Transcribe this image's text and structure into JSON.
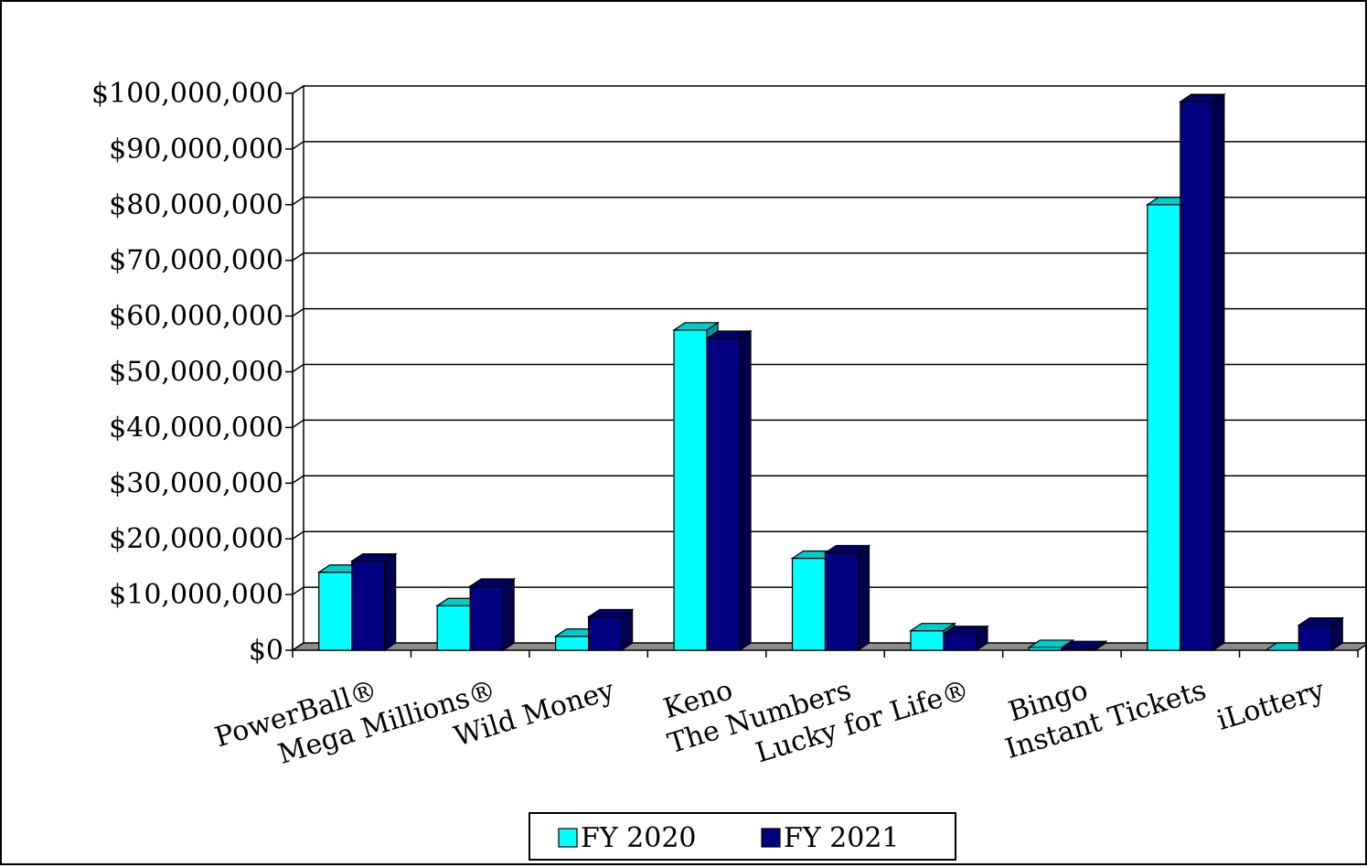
{
  "chart_data": {
    "type": "bar",
    "categories": [
      "PowerBall®",
      "Mega Millions®",
      "Wild Money",
      "Keno",
      "The Numbers",
      "Lucky for Life®",
      "Bingo",
      "Instant Tickets",
      "iLottery"
    ],
    "series": [
      {
        "name": "FY 2020",
        "color": "#00FFFF",
        "values": [
          14000000,
          8000000,
          2500000,
          57500000,
          16500000,
          3500000,
          500000,
          80000000,
          0
        ]
      },
      {
        "name": "FY 2021",
        "color": "#000080",
        "values": [
          16000000,
          11500000,
          6000000,
          56000000,
          17500000,
          3000000,
          300000,
          98500000,
          4500000
        ]
      }
    ],
    "y_ticks": [
      "$0",
      "$10,000,000",
      "$20,000,000",
      "$30,000,000",
      "$40,000,000",
      "$50,000,000",
      "$60,000,000",
      "$70,000,000",
      "$80,000,000",
      "$90,000,000",
      "$100,000,000"
    ],
    "ylim": [
      0,
      100000000
    ],
    "grid": true,
    "legend_position": "bottom",
    "style": "3d-clustered-column"
  }
}
